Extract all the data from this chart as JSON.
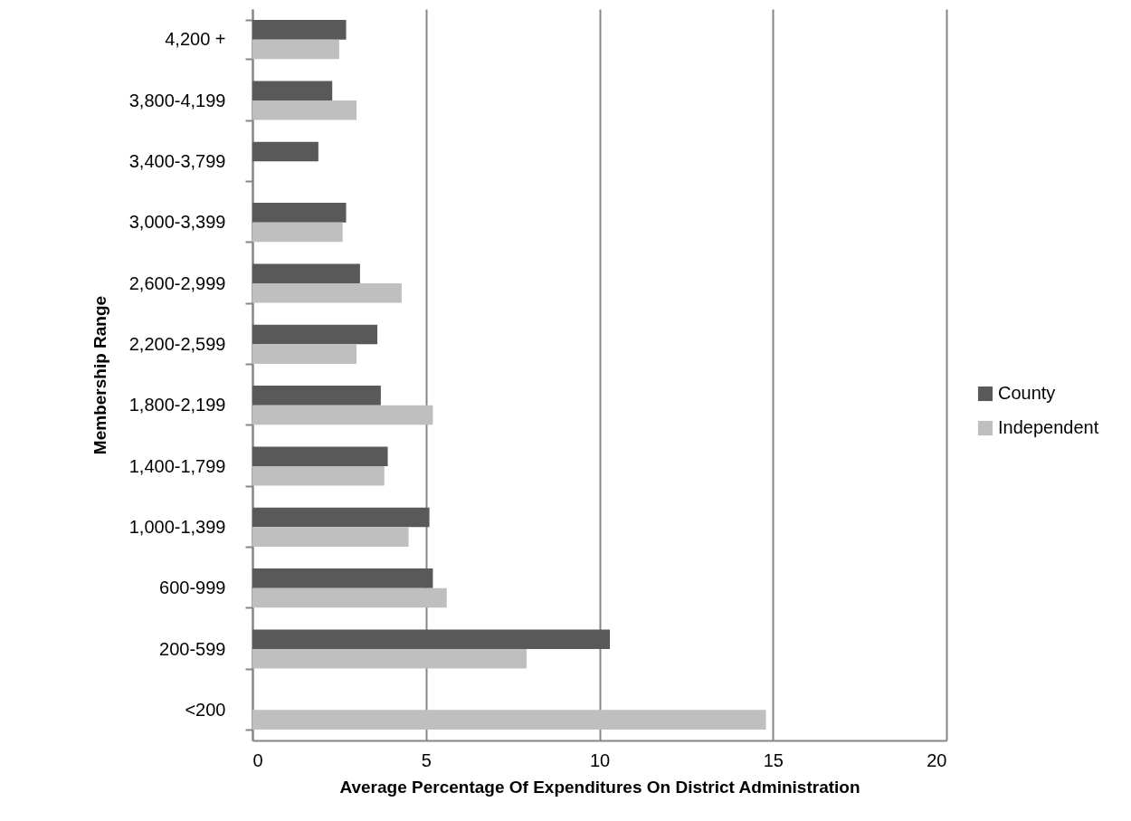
{
  "chart_data": {
    "type": "bar",
    "orientation": "horizontal",
    "xlabel": "Average Percentage Of Expenditures On District Administration",
    "ylabel": "Membership Range",
    "categories": [
      "4,200 +",
      "3,800-4,199",
      "3,400-3,799",
      "3,000-3,399",
      "2,600-2,999",
      "2,200-2,599",
      "1,800-2,199",
      "1,400-1,799",
      "1,000-1,399",
      "600-999",
      "200-599",
      "<200"
    ],
    "series": [
      {
        "name": "County",
        "color": "#595959",
        "values": [
          2.7,
          2.3,
          1.9,
          2.7,
          3.1,
          3.6,
          3.7,
          3.9,
          5.1,
          5.2,
          10.3,
          null
        ]
      },
      {
        "name": "Independent",
        "color": "#bfbfbf",
        "values": [
          2.5,
          3.0,
          null,
          2.6,
          4.3,
          3.0,
          5.2,
          3.8,
          4.5,
          5.6,
          7.9,
          14.8
        ]
      }
    ],
    "xlim": [
      0,
      20
    ],
    "xticks": [
      0,
      5,
      10,
      15,
      20
    ],
    "grid": "x",
    "legend": "right"
  }
}
